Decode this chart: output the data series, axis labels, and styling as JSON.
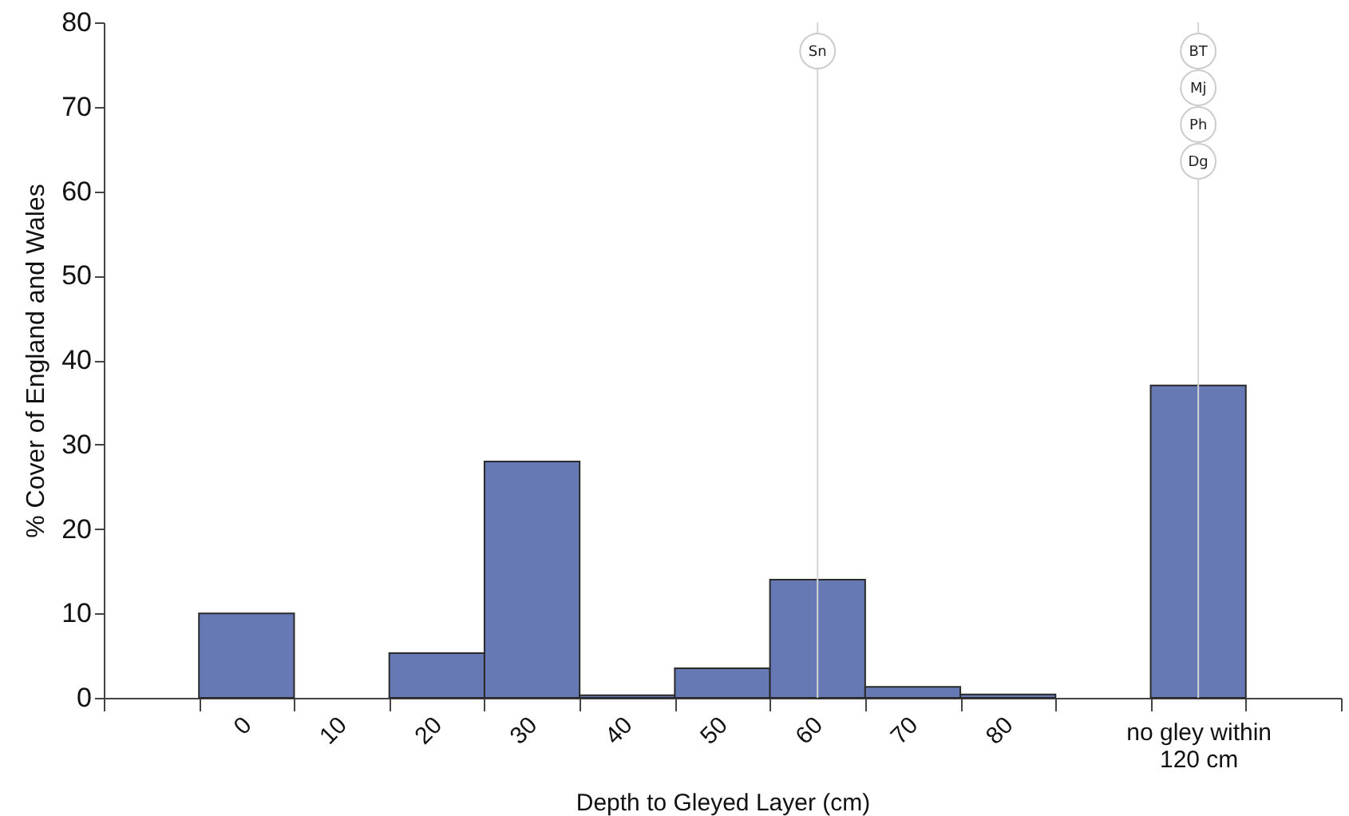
{
  "chart_data": {
    "type": "bar",
    "xlabel": "Depth to Gleyed Layer (cm)",
    "ylabel": "% Cover of England and Wales",
    "categories": [
      null,
      "0",
      "10",
      "20",
      "30",
      "40",
      "50",
      "60",
      "70",
      "80",
      null,
      "no gley within 120 cm",
      null
    ],
    "values": [
      null,
      10,
      null,
      5.3,
      28,
      0.3,
      3.5,
      14,
      1.3,
      0.4,
      null,
      37,
      null
    ],
    "color": "#6679b4",
    "ylim": [
      0,
      80
    ],
    "yticks": [
      0,
      10,
      20,
      30,
      40,
      50,
      60,
      70,
      80
    ],
    "grid": false,
    "ref_lines": [
      {
        "axis": "x",
        "value": "60",
        "label": "Sn",
        "color": "#d4d4d4"
      },
      {
        "axis": "x",
        "value": "no gley within 120 cm",
        "label": "BT",
        "color": "#d4d4d4"
      }
    ],
    "annotations": [
      {
        "text": "Mj",
        "x": "no gley within 120 cm"
      },
      {
        "text": "Ph",
        "x": "no gley within 120 cm"
      },
      {
        "text": "Dg",
        "x": "no gley within 120 cm"
      }
    ]
  }
}
